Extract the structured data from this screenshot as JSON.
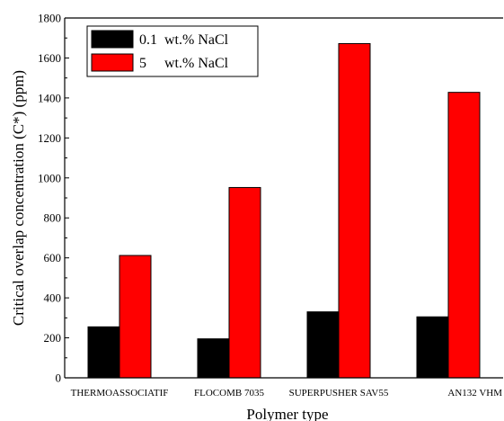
{
  "chart_data": {
    "type": "bar",
    "xlabel": "Polymer type",
    "ylabel": "Critical overlap concentration (C*) (ppm)",
    "categories": [
      "THERMOASSOCIATIF",
      "FLOCOMB 7035",
      "SUPERPUSHER SAV55",
      "AN132 VHM"
    ],
    "series": [
      {
        "name": "0.1  wt.% NaCl",
        "color": "#000000",
        "values": [
          255,
          195,
          330,
          305
        ]
      },
      {
        "name": "5     wt.% NaCl",
        "color": "#ff0000",
        "values": [
          612,
          952,
          1672,
          1428
        ]
      }
    ],
    "ylim": [
      0,
      1800
    ],
    "yticks": [
      0,
      200,
      400,
      600,
      800,
      1000,
      1200,
      1400,
      1600,
      1800
    ],
    "legend_position": "top-left",
    "grid": false
  }
}
